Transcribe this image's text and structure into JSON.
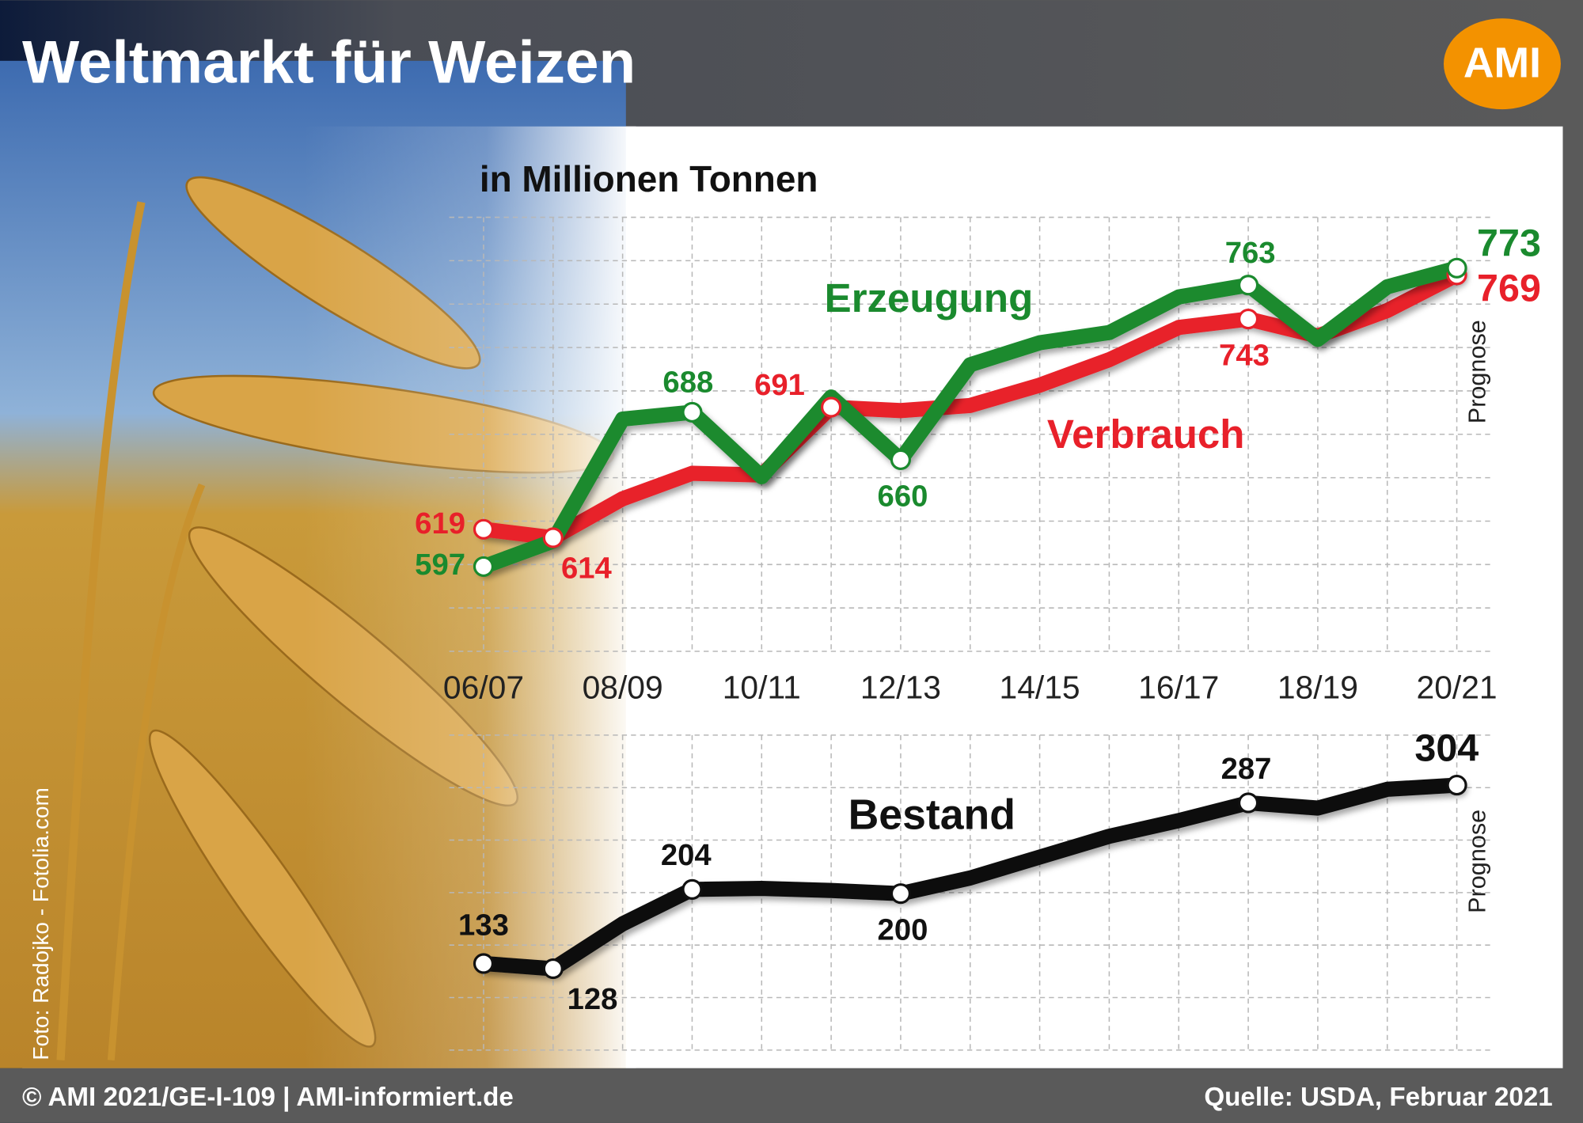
{
  "header": {
    "title": "Weltmarkt für Weizen",
    "logo": "AMI"
  },
  "photo_credit": "Foto: Radojko - Fotolia.com",
  "footer": {
    "left": "© AMI 2021/GE-I-109 | AMI-informiert.de",
    "right": "Quelle: USDA, Februar 2021"
  },
  "chart_data": [
    {
      "type": "line",
      "subtitle": "in Millionen Tonnen",
      "annotation": "Prognose",
      "categories": [
        "06/07",
        null,
        "08/09",
        null,
        "10/11",
        null,
        "12/13",
        null,
        "14/15",
        null,
        "16/17",
        null,
        "18/19",
        null,
        "20/21"
      ],
      "ylim": [
        550,
        800
      ],
      "series": [
        {
          "name": "Erzeugung",
          "color": "#1a8a2e",
          "values": [
            597,
            612,
            684,
            688,
            650,
            697,
            660,
            716,
            729,
            735,
            756,
            763,
            731,
            762,
            773
          ],
          "value_labels": [
            "597",
            null,
            null,
            "688",
            null,
            null,
            "660",
            null,
            null,
            null,
            null,
            "763",
            null,
            null,
            "773"
          ]
        },
        {
          "name": "Verbrauch",
          "color": "#e8202a",
          "values": [
            619,
            614,
            637,
            652,
            651,
            691,
            689,
            692,
            704,
            719,
            738,
            743,
            733,
            748,
            769
          ],
          "value_labels": [
            "619",
            "614",
            null,
            null,
            null,
            "691",
            null,
            null,
            null,
            null,
            null,
            "743",
            null,
            null,
            "769"
          ]
        }
      ]
    },
    {
      "type": "line",
      "annotation": "Prognose",
      "ylim": [
        50,
        350
      ],
      "series": [
        {
          "name": "Bestand",
          "color": "#111111",
          "values": [
            133,
            128,
            171,
            204,
            205,
            203,
            200,
            215,
            235,
            255,
            270,
            287,
            282,
            300,
            304
          ],
          "value_labels": [
            "133",
            "128",
            null,
            "204",
            null,
            null,
            "200",
            null,
            null,
            null,
            null,
            "287",
            null,
            null,
            "304"
          ]
        }
      ]
    }
  ]
}
